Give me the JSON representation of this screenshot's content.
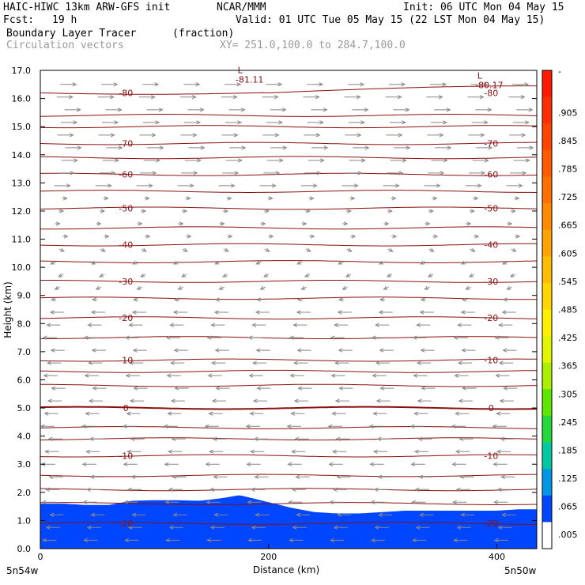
{
  "header": {
    "model": "HAIC-HIWC 13km ARW-GFS init",
    "org": "NCAR/MMM",
    "init": "Init: 06 UTC Mon 04 May 15",
    "fcst_label": "Fcst:",
    "fcst_value": "19 h",
    "valid": "Valid: 01 UTC Tue 05 May 15 (22 LST Mon 04 May 15)",
    "field": "Boundary Layer Tracer",
    "field_units": "(fraction)",
    "vectors": "Circulation vectors",
    "xy": "XY= 251.0,100.0 to 284.7,100.0"
  },
  "chart_data": {
    "type": "heatmap",
    "ylabel": "Height (km)",
    "xlabel": "Distance (km)",
    "ylim": [
      0,
      17
    ],
    "xlim": [
      0,
      435
    ],
    "y_ticks": [
      "0.0",
      "1.0",
      "2.0",
      "3.0",
      "4.0",
      "5.0",
      "6.0",
      "7.0",
      "8.0",
      "9.0",
      "10.0",
      "11.0",
      "12.0",
      "13.0",
      "14.0",
      "15.0",
      "16.0",
      "17.0"
    ],
    "x_ticks": [
      {
        "value": 0,
        "label": "0"
      },
      {
        "value": 200,
        "label": "200"
      },
      {
        "value": 400,
        "label": "400"
      }
    ],
    "x_end_labels": {
      "left": "5n54w",
      "right": "5n50w"
    },
    "colorbar": {
      "labels": [
        "-",
        ".905",
        ".845",
        ".785",
        ".725",
        ".665",
        ".605",
        ".545",
        ".485",
        ".425",
        ".365",
        ".305",
        ".245",
        ".185",
        ".125",
        ".065",
        ".005"
      ],
      "colors": [
        "#ff1a00",
        "#ff2e00",
        "#ff4500",
        "#ff5a00",
        "#ff7000",
        "#ff8a00",
        "#ffa300",
        "#ffbd00",
        "#ffd600",
        "#fff000",
        "#e1f500",
        "#a8ef00",
        "#5fe600",
        "#22d83a",
        "#00c8a0",
        "#0096e6",
        "#0046ff",
        "#ffffff"
      ]
    },
    "series": [
      {
        "name": "tracer_top_km",
        "x": [
          0,
          20,
          40,
          60,
          80,
          100,
          120,
          140,
          160,
          175,
          190,
          205,
          220,
          240,
          260,
          280,
          300,
          320,
          340,
          360,
          380,
          400,
          420,
          435
        ],
        "values": [
          1.6,
          1.6,
          1.55,
          1.55,
          1.7,
          1.72,
          1.72,
          1.7,
          1.8,
          1.9,
          1.75,
          1.6,
          1.45,
          1.3,
          1.25,
          1.25,
          1.3,
          1.35,
          1.35,
          1.35,
          1.35,
          1.35,
          1.4,
          1.4
        ]
      }
    ],
    "contours": [
      {
        "label": "-20",
        "y": 0.9
      },
      {
        "label": "-10",
        "y": 3.3
      },
      {
        "label": "0",
        "y": 5.0
      },
      {
        "label": "-10",
        "y": 6.7
      },
      {
        "label": "-20",
        "y": 8.2
      },
      {
        "label": "-30",
        "y": 9.5
      },
      {
        "label": "-40",
        "y": 10.8
      },
      {
        "label": "-50",
        "y": 12.1
      },
      {
        "label": "-60",
        "y": 13.3
      },
      {
        "label": "-70",
        "y": 14.4
      },
      {
        "label": "-80",
        "y": 16.2
      }
    ],
    "contour_levels_k": [
      0.9,
      1.6,
      2.1,
      2.6,
      3.3,
      3.9,
      4.3,
      5.0,
      5.8,
      6.3,
      6.7,
      7.5,
      8.2,
      8.9,
      9.5,
      10.2,
      10.8,
      11.4,
      12.1,
      12.7,
      13.3,
      13.9,
      14.4,
      15.0,
      15.4,
      16.2
    ],
    "low_labels": [
      {
        "text": "L",
        "value": "-81.11",
        "x": 175,
        "y": 16.9
      },
      {
        "text": "L",
        "value": "-80.17",
        "x": 385,
        "y": 16.7
      }
    ]
  }
}
